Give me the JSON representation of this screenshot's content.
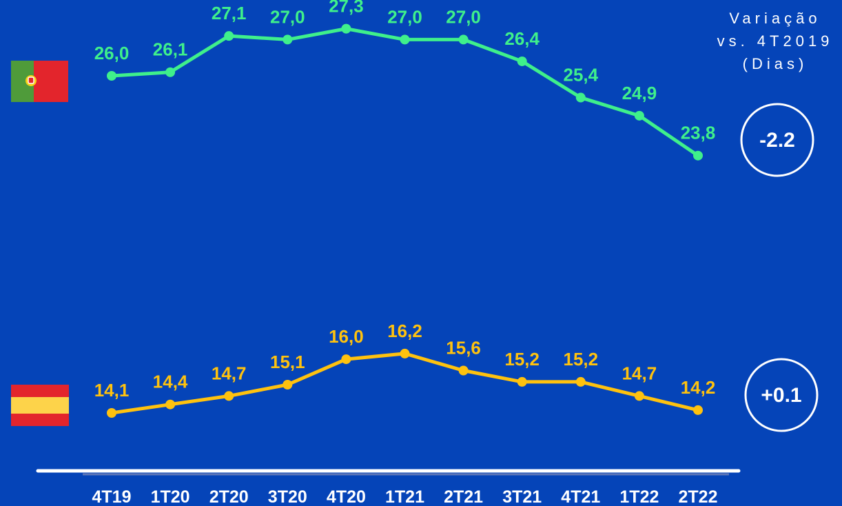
{
  "legend_header": {
    "line1": "Variação",
    "line2": "vs. 4T2019",
    "line3": "(Dias)"
  },
  "colors": {
    "background": "#0544b8",
    "portugal_series": "#3ff08b",
    "spain_series": "#ffc20e",
    "white": "#ffffff"
  },
  "chart_data": {
    "type": "line",
    "categories": [
      "4T19",
      "1T20",
      "2T20",
      "3T20",
      "4T20",
      "1T21",
      "2T21",
      "3T21",
      "4T21",
      "1T22",
      "2T22"
    ],
    "series": [
      {
        "flag": "portugal-flag-icon",
        "values": [
          26.0,
          26.1,
          27.1,
          27.0,
          27.3,
          27.0,
          27.0,
          26.4,
          25.4,
          24.9,
          23.8
        ],
        "labels": [
          "26,0",
          "26,1",
          "27,1",
          "27,0",
          "27,3",
          "27,0",
          "27,0",
          "26,4",
          "25,4",
          "24,9",
          "23,8"
        ],
        "variation": "-2.2"
      },
      {
        "flag": "spain-flag-icon",
        "values": [
          14.1,
          14.4,
          14.7,
          15.1,
          16.0,
          16.2,
          15.6,
          15.2,
          15.2,
          14.7,
          14.2
        ],
        "labels": [
          "14,1",
          "14,4",
          "14,7",
          "15,1",
          "16,0",
          "16,2",
          "15,6",
          "15,2",
          "15,2",
          "14,7",
          "14,2"
        ],
        "variation": "+0.1"
      }
    ]
  }
}
